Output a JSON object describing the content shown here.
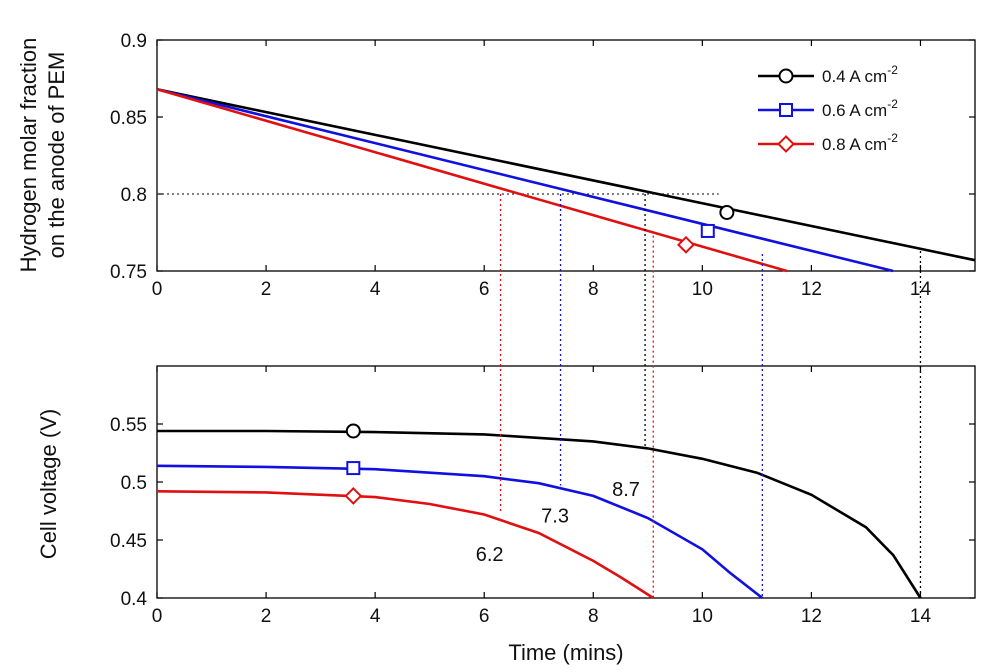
{
  "chart_data": [
    {
      "type": "line",
      "panel": "top",
      "ylabel_lines": [
        "Hydrogen molar fraction",
        "on the anode of PEM"
      ],
      "xlabel": "",
      "xlim": [
        0,
        15
      ],
      "ylim": [
        0.75,
        0.9
      ],
      "xticks": [
        0,
        2,
        4,
        6,
        8,
        10,
        12,
        14
      ],
      "xtick_labels": [
        "0",
        "2",
        "4",
        "6",
        "8",
        "10",
        "12",
        "14"
      ],
      "yticks": [
        0.75,
        0.8,
        0.85,
        0.9
      ],
      "ytick_labels": [
        "0.75",
        "0.8",
        "0.85",
        "0.9"
      ],
      "grid": false,
      "legend_position": "top-right",
      "series": [
        {
          "name": "0.4 A cm",
          "exp": "-2",
          "color": "#000000",
          "marker": "circle",
          "x": [
            0,
            15
          ],
          "y": [
            0.868,
            0.757
          ],
          "marker_at": {
            "x": 10.45,
            "y": 0.788
          }
        },
        {
          "name": "0.6 A cm",
          "exp": "-2",
          "color": "#1010e0",
          "marker": "square",
          "x": [
            0,
            13.5
          ],
          "y": [
            0.868,
            0.75
          ],
          "marker_at": {
            "x": 10.1,
            "y": 0.776
          }
        },
        {
          "name": "0.8 A cm",
          "exp": "-2",
          "color": "#e01010",
          "marker": "diamond",
          "x": [
            0,
            11.55
          ],
          "y": [
            0.868,
            0.75
          ],
          "marker_at": {
            "x": 9.7,
            "y": 0.767
          }
        }
      ],
      "reference_line": {
        "y": 0.8,
        "x_end": 10.3,
        "color": "#333333"
      }
    },
    {
      "type": "line",
      "panel": "bottom",
      "ylabel": "Cell voltage (V)",
      "xlabel": "Time (mins)",
      "xlim": [
        0,
        15
      ],
      "ylim": [
        0.4,
        0.6
      ],
      "xticks": [
        0,
        2,
        4,
        6,
        8,
        10,
        12,
        14
      ],
      "xtick_labels": [
        "0",
        "2",
        "4",
        "6",
        "8",
        "10",
        "12",
        "14"
      ],
      "yticks": [
        0.4,
        0.45,
        0.5,
        0.55
      ],
      "ytick_labels": [
        "0.4",
        "0.45",
        "0.5",
        "0.55"
      ],
      "grid": false,
      "series": [
        {
          "name": "0.4 A cm-2",
          "color": "#000000",
          "marker": "circle",
          "x": [
            0,
            2,
            4,
            6,
            8,
            9,
            10,
            11,
            12,
            13,
            13.5,
            14
          ],
          "y": [
            0.544,
            0.544,
            0.543,
            0.541,
            0.535,
            0.529,
            0.52,
            0.508,
            0.489,
            0.461,
            0.437,
            0.4
          ],
          "marker_at": {
            "x": 3.6,
            "y": 0.544
          }
        },
        {
          "name": "0.6 A cm-2",
          "color": "#1010e0",
          "marker": "square",
          "x": [
            0,
            2,
            4,
            6,
            7,
            8,
            9,
            10,
            10.5,
            11.1
          ],
          "y": [
            0.514,
            0.513,
            0.511,
            0.505,
            0.499,
            0.488,
            0.469,
            0.442,
            0.422,
            0.4
          ],
          "marker_at": {
            "x": 3.6,
            "y": 0.512
          }
        },
        {
          "name": "0.8 A cm-2",
          "color": "#e01010",
          "marker": "diamond",
          "x": [
            0,
            2,
            4,
            5,
            6,
            7,
            8,
            8.5,
            9.1
          ],
          "y": [
            0.492,
            0.491,
            0.487,
            0.481,
            0.472,
            0.456,
            0.432,
            0.418,
            0.4
          ],
          "marker_at": {
            "x": 3.6,
            "y": 0.488
          }
        }
      ],
      "annotations": [
        {
          "text": "8.7",
          "x": 8.6,
          "y": 0.488
        },
        {
          "text": "7.3",
          "x": 7.3,
          "y": 0.465
        },
        {
          "text": "6.2",
          "x": 6.1,
          "y": 0.432
        }
      ]
    }
  ],
  "guide_lines": [
    {
      "x": 6.3,
      "color": "#e01010",
      "y_top": 0.8,
      "y_bottom": 0.473
    },
    {
      "x": 7.4,
      "color": "#1010e0",
      "y_top": 0.8,
      "y_bottom": 0.497
    },
    {
      "x": 8.95,
      "color": "#000000",
      "y_top": 0.8,
      "y_bottom": 0.53
    },
    {
      "x": 9.1,
      "color": "#e01010",
      "y_top": 0.773,
      "y_bottom": 0.4
    },
    {
      "x": 11.1,
      "color": "#1010e0",
      "y_top": 0.761,
      "y_bottom": 0.4
    },
    {
      "x": 14.0,
      "color": "#000000",
      "y_top": 0.763,
      "y_bottom": 0.4
    }
  ]
}
